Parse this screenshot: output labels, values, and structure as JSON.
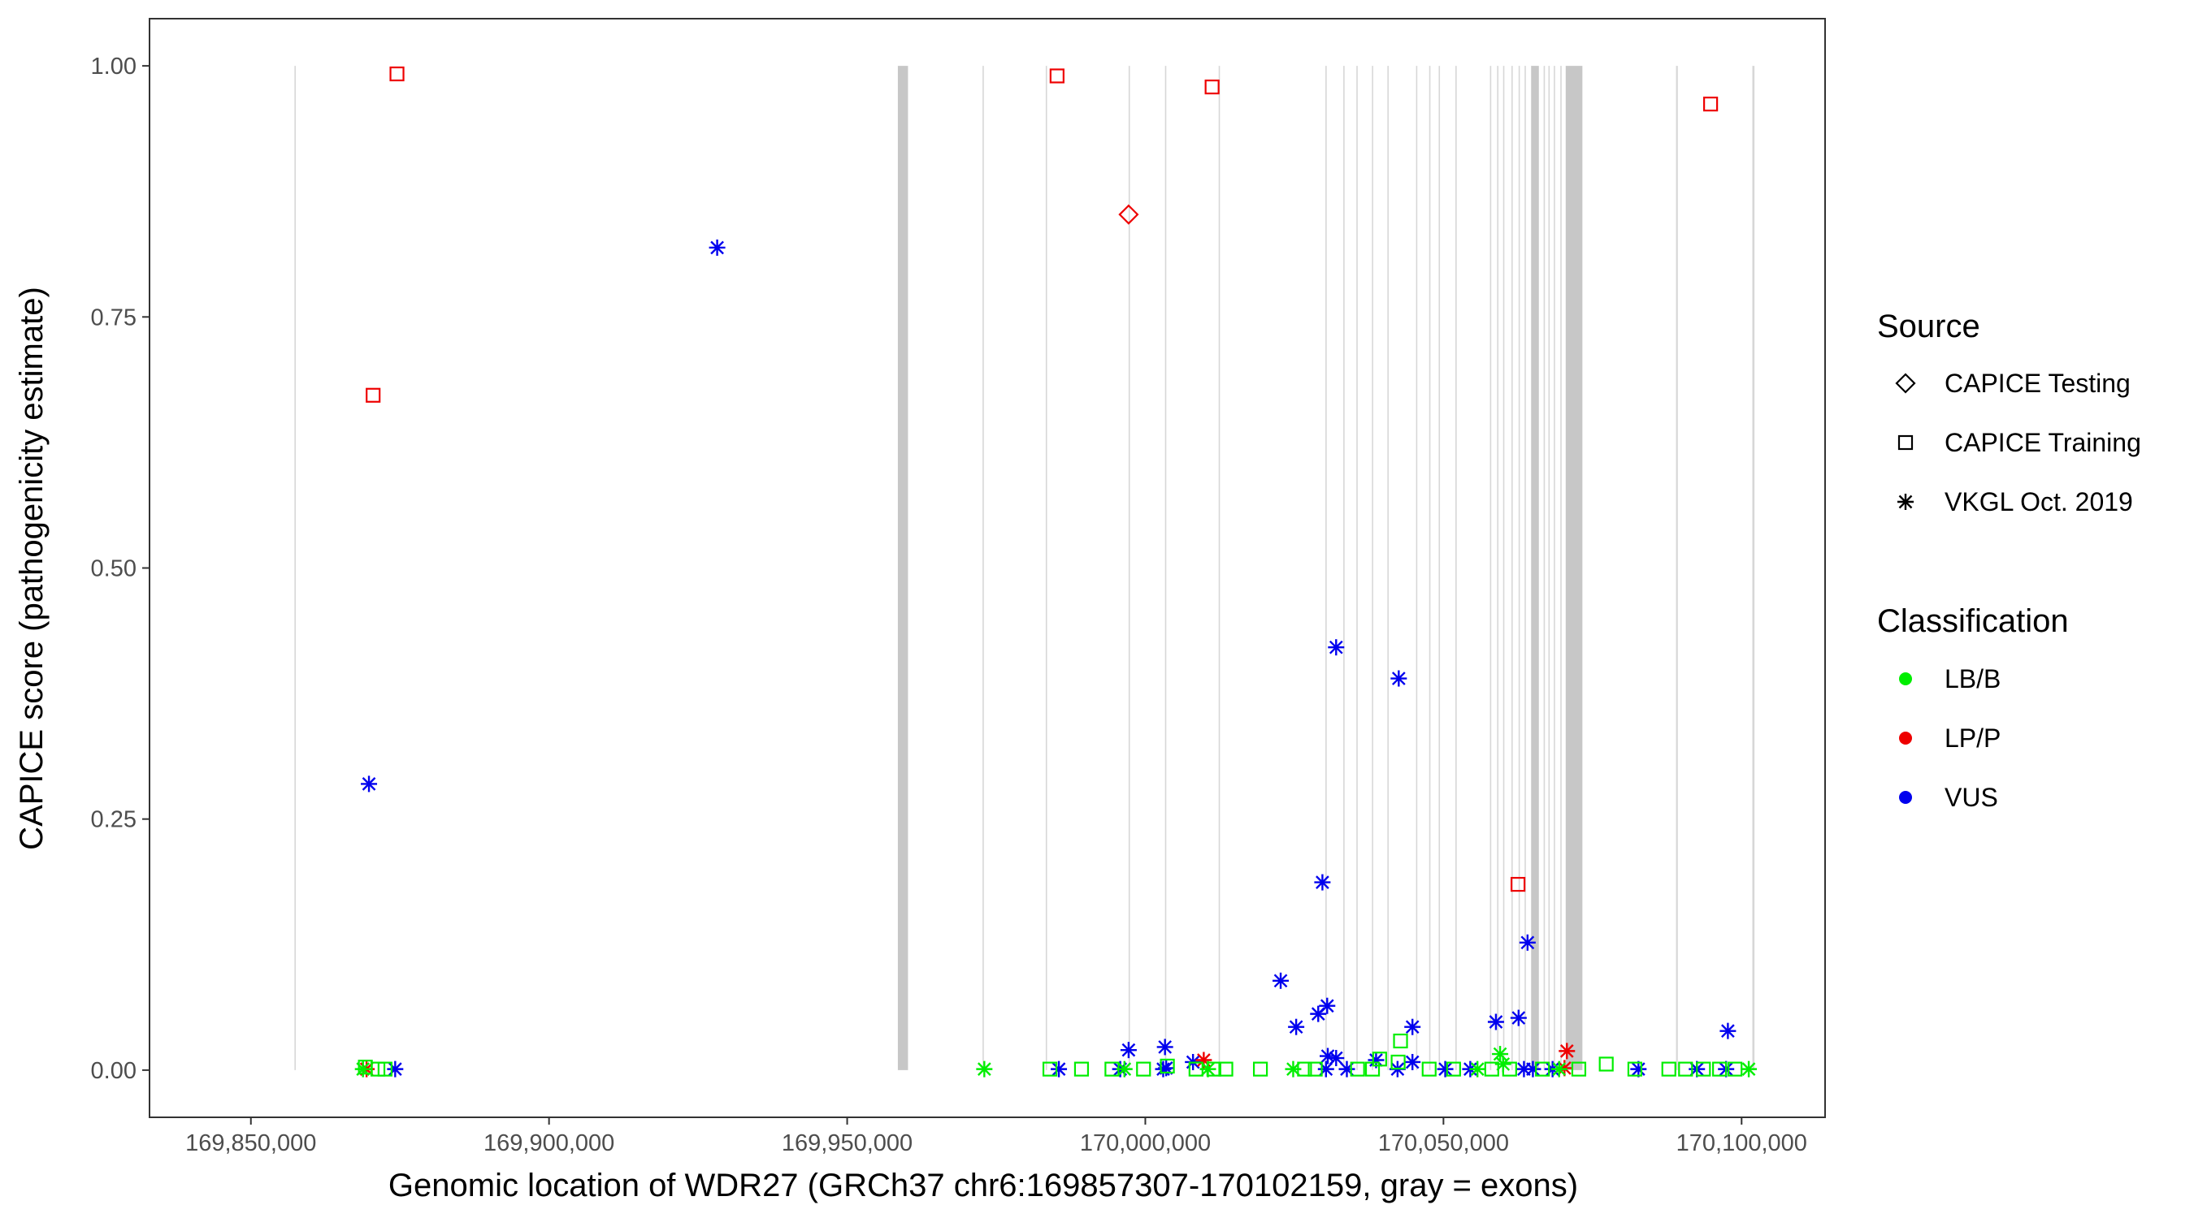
{
  "chart_data": {
    "type": "scatter",
    "xlabel": "Genomic location of WDR27 (GRCh37 chr6:169857307-170102159, gray = exons)",
    "ylabel": "CAPICE score (pathogenicity estimate)",
    "xlim": [
      169833000,
      170114000
    ],
    "ylim": [
      -0.047,
      1.047
    ],
    "x_ticks": [
      169850000,
      169900000,
      169950000,
      170000000,
      170050000,
      170100000
    ],
    "x_tick_labels": [
      "169,850,000",
      "169,900,000",
      "169,950,000",
      "170,000,000",
      "170,050,000",
      "170,100,000"
    ],
    "y_ticks": [
      0,
      0.25,
      0.5,
      0.75,
      1.0
    ],
    "y_tick_labels": [
      "0.00",
      "0.25",
      "0.50",
      "0.75",
      "1.00"
    ],
    "grid": false,
    "exons": [
      [
        169857307,
        169857507
      ],
      [
        169958500,
        169960200
      ],
      [
        169972700,
        169972900
      ],
      [
        169983300,
        169983500
      ],
      [
        169997200,
        169997400
      ],
      [
        170003300,
        170003500
      ],
      [
        170012300,
        170012500
      ],
      [
        170030200,
        170030400
      ],
      [
        170033200,
        170033400
      ],
      [
        170035400,
        170035600
      ],
      [
        170038000,
        170038200
      ],
      [
        170040600,
        170040800
      ],
      [
        170045400,
        170045600
      ],
      [
        170047600,
        170047800
      ],
      [
        170049200,
        170049400
      ],
      [
        170052000,
        170052200
      ],
      [
        170057800,
        170058000
      ],
      [
        170059000,
        170059200
      ],
      [
        170060000,
        170060200
      ],
      [
        170061400,
        170061600
      ],
      [
        170062600,
        170062800
      ],
      [
        170063600,
        170063800
      ],
      [
        170064700,
        170066000
      ],
      [
        170066800,
        170067000
      ],
      [
        170067600,
        170067800
      ],
      [
        170068500,
        170068700
      ],
      [
        170069600,
        170069800
      ],
      [
        170070500,
        170073300
      ],
      [
        170089000,
        170089300
      ],
      [
        170101800,
        170102159
      ]
    ],
    "legend": {
      "placement": "right",
      "source_title": "Source",
      "source_entries": [
        {
          "label": "CAPICE Testing",
          "shape": "diamond"
        },
        {
          "label": "CAPICE Training",
          "shape": "square"
        },
        {
          "label": "VKGL Oct. 2019",
          "shape": "asterisk"
        }
      ],
      "classification_title": "Classification",
      "classification_entries": [
        {
          "label": "LB/B",
          "color": "#00ee00"
        },
        {
          "label": "LP/P",
          "color": "#ee0000"
        },
        {
          "label": "VUS",
          "color": "#0000ee"
        }
      ]
    },
    "points": [
      {
        "x": 169874500,
        "y": 0.992,
        "shape": "square",
        "class": "LP/P"
      },
      {
        "x": 169985200,
        "y": 0.99,
        "shape": "square",
        "class": "LP/P"
      },
      {
        "x": 170011200,
        "y": 0.979,
        "shape": "square",
        "class": "LP/P"
      },
      {
        "x": 170094800,
        "y": 0.962,
        "shape": "square",
        "class": "LP/P"
      },
      {
        "x": 169870500,
        "y": 0.672,
        "shape": "square",
        "class": "LP/P"
      },
      {
        "x": 170062500,
        "y": 0.185,
        "shape": "square",
        "class": "LP/P"
      },
      {
        "x": 169997200,
        "y": 0.852,
        "shape": "diamond",
        "class": "LP/P"
      },
      {
        "x": 169928200,
        "y": 0.819,
        "shape": "asterisk",
        "class": "VUS"
      },
      {
        "x": 169869800,
        "y": 0.285,
        "shape": "asterisk",
        "class": "VUS"
      },
      {
        "x": 170032000,
        "y": 0.421,
        "shape": "asterisk",
        "class": "VUS"
      },
      {
        "x": 170042500,
        "y": 0.39,
        "shape": "asterisk",
        "class": "VUS"
      },
      {
        "x": 170029700,
        "y": 0.187,
        "shape": "asterisk",
        "class": "VUS"
      },
      {
        "x": 170064100,
        "y": 0.127,
        "shape": "asterisk",
        "class": "VUS"
      },
      {
        "x": 170022700,
        "y": 0.089,
        "shape": "asterisk",
        "class": "VUS"
      },
      {
        "x": 170030500,
        "y": 0.064,
        "shape": "asterisk",
        "class": "VUS"
      },
      {
        "x": 170029000,
        "y": 0.056,
        "shape": "asterisk",
        "class": "VUS"
      },
      {
        "x": 170062600,
        "y": 0.052,
        "shape": "asterisk",
        "class": "VUS"
      },
      {
        "x": 170058800,
        "y": 0.048,
        "shape": "asterisk",
        "class": "VUS"
      },
      {
        "x": 170025300,
        "y": 0.043,
        "shape": "asterisk",
        "class": "VUS"
      },
      {
        "x": 170044800,
        "y": 0.043,
        "shape": "asterisk",
        "class": "VUS"
      },
      {
        "x": 170097700,
        "y": 0.039,
        "shape": "asterisk",
        "class": "VUS"
      },
      {
        "x": 170003300,
        "y": 0.023,
        "shape": "asterisk",
        "class": "VUS"
      },
      {
        "x": 169997200,
        "y": 0.02,
        "shape": "asterisk",
        "class": "VUS"
      },
      {
        "x": 170030600,
        "y": 0.014,
        "shape": "asterisk",
        "class": "VUS"
      },
      {
        "x": 170032000,
        "y": 0.012,
        "shape": "asterisk",
        "class": "VUS"
      },
      {
        "x": 170038700,
        "y": 0.01,
        "shape": "asterisk",
        "class": "VUS"
      },
      {
        "x": 170008000,
        "y": 0.008,
        "shape": "asterisk",
        "class": "VUS"
      },
      {
        "x": 170044800,
        "y": 0.008,
        "shape": "asterisk",
        "class": "VUS"
      },
      {
        "x": 170003500,
        "y": 0.002,
        "shape": "asterisk",
        "class": "VUS"
      },
      {
        "x": 169874200,
        "y": 0.001,
        "shape": "asterisk",
        "class": "VUS"
      },
      {
        "x": 169985500,
        "y": 0.001,
        "shape": "asterisk",
        "class": "VUS"
      },
      {
        "x": 169995800,
        "y": 0.001,
        "shape": "asterisk",
        "class": "VUS"
      },
      {
        "x": 170003000,
        "y": 0.001,
        "shape": "asterisk",
        "class": "VUS"
      },
      {
        "x": 170030300,
        "y": 0.001,
        "shape": "asterisk",
        "class": "VUS"
      },
      {
        "x": 170033800,
        "y": 0.001,
        "shape": "asterisk",
        "class": "VUS"
      },
      {
        "x": 170042300,
        "y": 0.001,
        "shape": "asterisk",
        "class": "VUS"
      },
      {
        "x": 170050300,
        "y": 0.001,
        "shape": "asterisk",
        "class": "VUS"
      },
      {
        "x": 170054500,
        "y": 0.001,
        "shape": "asterisk",
        "class": "VUS"
      },
      {
        "x": 170063500,
        "y": 0.001,
        "shape": "asterisk",
        "class": "VUS"
      },
      {
        "x": 170065000,
        "y": 0.001,
        "shape": "asterisk",
        "class": "VUS"
      },
      {
        "x": 170068300,
        "y": 0.001,
        "shape": "asterisk",
        "class": "VUS"
      },
      {
        "x": 170082700,
        "y": 0.001,
        "shape": "asterisk",
        "class": "VUS"
      },
      {
        "x": 170092500,
        "y": 0.001,
        "shape": "asterisk",
        "class": "VUS"
      },
      {
        "x": 170097400,
        "y": 0.001,
        "shape": "asterisk",
        "class": "VUS"
      },
      {
        "x": 170070700,
        "y": 0.019,
        "shape": "asterisk",
        "class": "LP/P"
      },
      {
        "x": 170009800,
        "y": 0.01,
        "shape": "asterisk",
        "class": "LP/P"
      },
      {
        "x": 169869400,
        "y": 0.001,
        "shape": "asterisk",
        "class": "LP/P"
      },
      {
        "x": 170070300,
        "y": 0.002,
        "shape": "asterisk",
        "class": "LP/P"
      },
      {
        "x": 170042800,
        "y": 0.029,
        "shape": "square",
        "class": "LB/B"
      },
      {
        "x": 170059500,
        "y": 0.016,
        "shape": "asterisk",
        "class": "LB/B"
      },
      {
        "x": 170039300,
        "y": 0.011,
        "shape": "square",
        "class": "LB/B"
      },
      {
        "x": 170042400,
        "y": 0.008,
        "shape": "square",
        "class": "LB/B"
      },
      {
        "x": 170077300,
        "y": 0.006,
        "shape": "square",
        "class": "LB/B"
      },
      {
        "x": 170060000,
        "y": 0.006,
        "shape": "asterisk",
        "class": "LB/B"
      },
      {
        "x": 170003700,
        "y": 0.004,
        "shape": "square",
        "class": "LB/B"
      },
      {
        "x": 169869200,
        "y": 0.003,
        "shape": "square",
        "class": "LB/B"
      },
      {
        "x": 169868800,
        "y": 0.001,
        "shape": "asterisk",
        "class": "LB/B"
      },
      {
        "x": 169871300,
        "y": 0.001,
        "shape": "square",
        "class": "LB/B"
      },
      {
        "x": 169872500,
        "y": 0.001,
        "shape": "square",
        "class": "LB/B"
      },
      {
        "x": 169973000,
        "y": 0.001,
        "shape": "asterisk",
        "class": "LB/B"
      },
      {
        "x": 169984000,
        "y": 0.001,
        "shape": "square",
        "class": "LB/B"
      },
      {
        "x": 169989300,
        "y": 0.001,
        "shape": "square",
        "class": "LB/B"
      },
      {
        "x": 169994400,
        "y": 0.001,
        "shape": "square",
        "class": "LB/B"
      },
      {
        "x": 169996500,
        "y": 0.001,
        "shape": "asterisk",
        "class": "LB/B"
      },
      {
        "x": 169999700,
        "y": 0.001,
        "shape": "square",
        "class": "LB/B"
      },
      {
        "x": 170008500,
        "y": 0.001,
        "shape": "square",
        "class": "LB/B"
      },
      {
        "x": 170010500,
        "y": 0.001,
        "shape": "asterisk",
        "class": "LB/B"
      },
      {
        "x": 170011500,
        "y": 0.001,
        "shape": "square",
        "class": "LB/B"
      },
      {
        "x": 170013500,
        "y": 0.001,
        "shape": "square",
        "class": "LB/B"
      },
      {
        "x": 170019300,
        "y": 0.001,
        "shape": "square",
        "class": "LB/B"
      },
      {
        "x": 170024800,
        "y": 0.001,
        "shape": "asterisk",
        "class": "LB/B"
      },
      {
        "x": 170026700,
        "y": 0.001,
        "shape": "square",
        "class": "LB/B"
      },
      {
        "x": 170028500,
        "y": 0.001,
        "shape": "square",
        "class": "LB/B"
      },
      {
        "x": 170035600,
        "y": 0.001,
        "shape": "square",
        "class": "LB/B"
      },
      {
        "x": 170038100,
        "y": 0.001,
        "shape": "square",
        "class": "LB/B"
      },
      {
        "x": 170047600,
        "y": 0.001,
        "shape": "square",
        "class": "LB/B"
      },
      {
        "x": 170051700,
        "y": 0.001,
        "shape": "square",
        "class": "LB/B"
      },
      {
        "x": 170055700,
        "y": 0.001,
        "shape": "asterisk",
        "class": "LB/B"
      },
      {
        "x": 170058100,
        "y": 0.001,
        "shape": "square",
        "class": "LB/B"
      },
      {
        "x": 170061100,
        "y": 0.001,
        "shape": "square",
        "class": "LB/B"
      },
      {
        "x": 170066600,
        "y": 0.001,
        "shape": "square",
        "class": "LB/B"
      },
      {
        "x": 170069400,
        "y": 0.001,
        "shape": "asterisk",
        "class": "LB/B"
      },
      {
        "x": 170072700,
        "y": 0.001,
        "shape": "square",
        "class": "LB/B"
      },
      {
        "x": 170082100,
        "y": 0.001,
        "shape": "square",
        "class": "LB/B"
      },
      {
        "x": 170087800,
        "y": 0.001,
        "shape": "square",
        "class": "LB/B"
      },
      {
        "x": 170090600,
        "y": 0.001,
        "shape": "square",
        "class": "LB/B"
      },
      {
        "x": 170093600,
        "y": 0.001,
        "shape": "square",
        "class": "LB/B"
      },
      {
        "x": 170096300,
        "y": 0.001,
        "shape": "square",
        "class": "LB/B"
      },
      {
        "x": 170098900,
        "y": 0.001,
        "shape": "square",
        "class": "LB/B"
      },
      {
        "x": 170101200,
        "y": 0.001,
        "shape": "asterisk",
        "class": "LB/B"
      }
    ]
  }
}
